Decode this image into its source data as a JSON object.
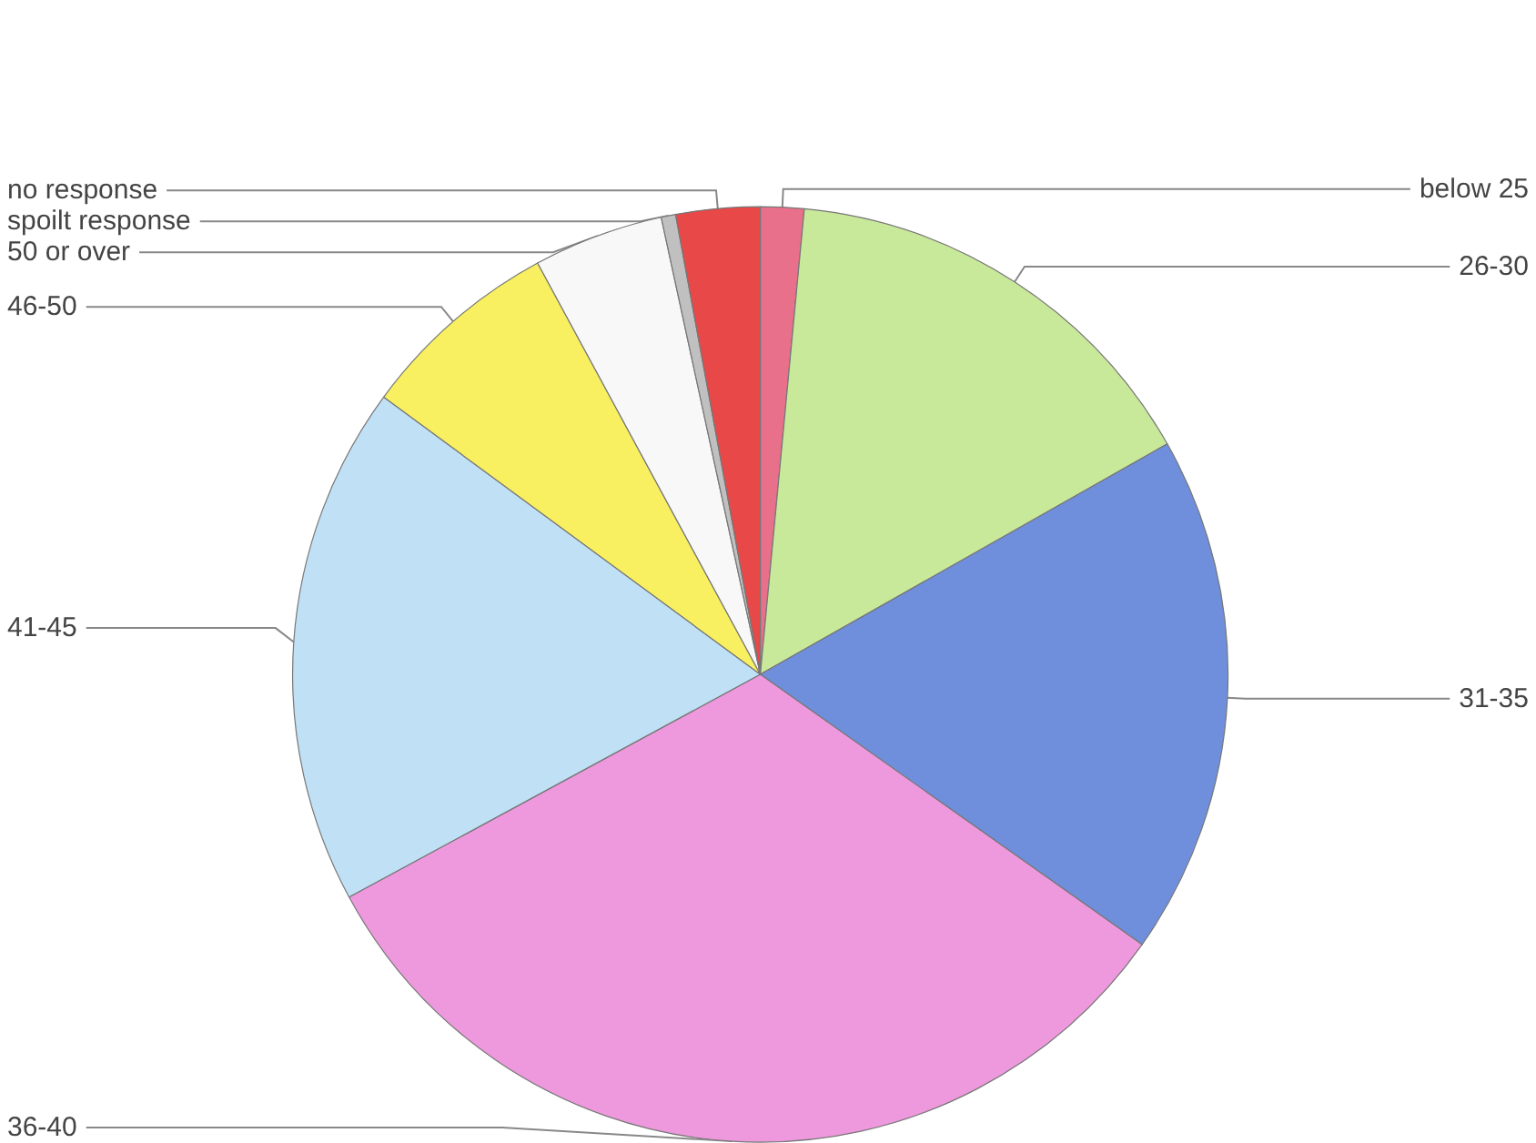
{
  "chart_data": {
    "type": "pie",
    "categories": [
      "below 25",
      "26-30",
      "31-35",
      "36-40",
      "41-45",
      "46-50",
      "50 or over",
      "spoilt response",
      "no response"
    ],
    "values": [
      1.5,
      15.3,
      18,
      32.3,
      18,
      7,
      4.5,
      0.5,
      2.9
    ],
    "colors": [
      "#e8708a",
      "#c8e89a",
      "#6f8fdc",
      "#ee99dd",
      "#bfe0f5",
      "#f8f060",
      "#f8f8f8",
      "#c0c0c0",
      "#e84848"
    ],
    "legend": false
  }
}
